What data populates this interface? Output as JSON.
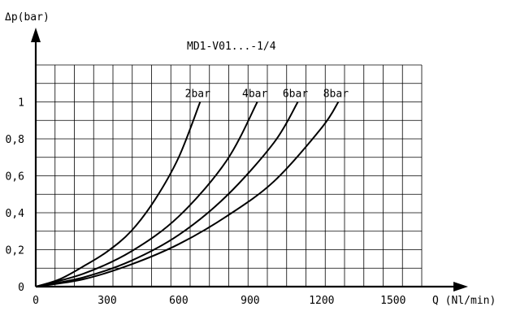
{
  "chart_data": {
    "type": "line",
    "title": "MD1-V01...-1/4",
    "xlabel": "Q (Nl/min)",
    "ylabel": "Δp(bar)",
    "xlim": [
      0,
      1620
    ],
    "ylim": [
      0,
      1.2
    ],
    "x_ticks": [
      0,
      300,
      600,
      900,
      1200,
      1500
    ],
    "x_tick_labels": [
      "0",
      "300",
      "600",
      "900",
      "1200",
      "1500"
    ],
    "y_ticks": [
      0,
      0.2,
      0.4,
      0.6,
      0.8,
      1
    ],
    "y_tick_labels": [
      "0",
      "0,2",
      "0,4",
      "0,6",
      "0,8",
      "1"
    ],
    "grid": true,
    "series": [
      {
        "name": "2bar",
        "x": [
          0,
          100,
          200,
          300,
          400,
          500,
          600,
          690
        ],
        "y": [
          0,
          0.04,
          0.11,
          0.19,
          0.3,
          0.47,
          0.7,
          1.0
        ]
      },
      {
        "name": "4bar",
        "x": [
          0,
          200,
          400,
          600,
          800,
          930
        ],
        "y": [
          0,
          0.07,
          0.19,
          0.38,
          0.68,
          1.0
        ]
      },
      {
        "name": "6bar",
        "x": [
          0,
          200,
          400,
          600,
          800,
          1000,
          1100
        ],
        "y": [
          0,
          0.05,
          0.14,
          0.28,
          0.49,
          0.78,
          1.0
        ]
      },
      {
        "name": "8bar",
        "x": [
          0,
          200,
          400,
          600,
          800,
          1000,
          1200,
          1270
        ],
        "y": [
          0,
          0.04,
          0.12,
          0.23,
          0.38,
          0.57,
          0.86,
          1.0
        ]
      }
    ]
  }
}
